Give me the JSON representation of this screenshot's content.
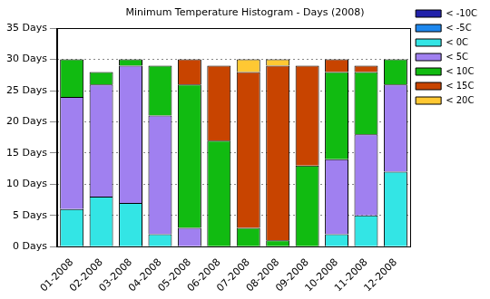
{
  "chart_data": {
    "type": "bar",
    "title": "Minimum Temperature Histogram - Days (2008)",
    "categories": [
      "01-2008",
      "02-2008",
      "03-2008",
      "04-2008",
      "05-2008",
      "06-2008",
      "07-2008",
      "08-2008",
      "09-2008",
      "10-2008",
      "11-2008",
      "12-2008"
    ],
    "series": [
      {
        "name": "< -10C",
        "color": "#2222aa",
        "values": [
          0,
          0,
          0,
          0,
          0,
          0,
          0,
          0,
          0,
          0,
          0,
          0
        ]
      },
      {
        "name": "< -5C",
        "color": "#1e88ee",
        "values": [
          0,
          0,
          0,
          0,
          0,
          0,
          0,
          0,
          0,
          0,
          0,
          0
        ]
      },
      {
        "name": "< 0C",
        "color": "#33e5e5",
        "values": [
          6,
          8,
          7,
          2,
          0,
          0,
          0,
          0,
          0,
          2,
          5,
          12
        ]
      },
      {
        "name": "< 5C",
        "color": "#a080f0",
        "values": [
          18,
          18,
          22,
          19,
          3,
          0,
          0,
          0,
          0,
          12,
          13,
          14
        ]
      },
      {
        "name": "< 10C",
        "color": "#11bb11",
        "values": [
          6,
          2,
          1,
          8,
          23,
          17,
          3,
          1,
          13,
          14,
          10,
          4
        ]
      },
      {
        "name": "< 15C",
        "color": "#c84400",
        "values": [
          0,
          0,
          0,
          0,
          4,
          12,
          25,
          28,
          16,
          2,
          1,
          0
        ]
      },
      {
        "name": "< 20C",
        "color": "#ffc833",
        "values": [
          0,
          0,
          0,
          0,
          0,
          0,
          2,
          1,
          0,
          0,
          0,
          0
        ]
      }
    ],
    "ylim": [
      0,
      35
    ],
    "yticks": [
      {
        "value": 0,
        "label": "0 Days"
      },
      {
        "value": 5,
        "label": "5 Days"
      },
      {
        "value": 10,
        "label": "10 Days"
      },
      {
        "value": 15,
        "label": "15 Days"
      },
      {
        "value": 20,
        "label": "20 Days"
      },
      {
        "value": 25,
        "label": "25 Days"
      },
      {
        "value": 30,
        "label": "30 Days"
      },
      {
        "value": 35,
        "label": "35 Days"
      }
    ],
    "stacked": true,
    "grid": true,
    "legend": "right"
  }
}
